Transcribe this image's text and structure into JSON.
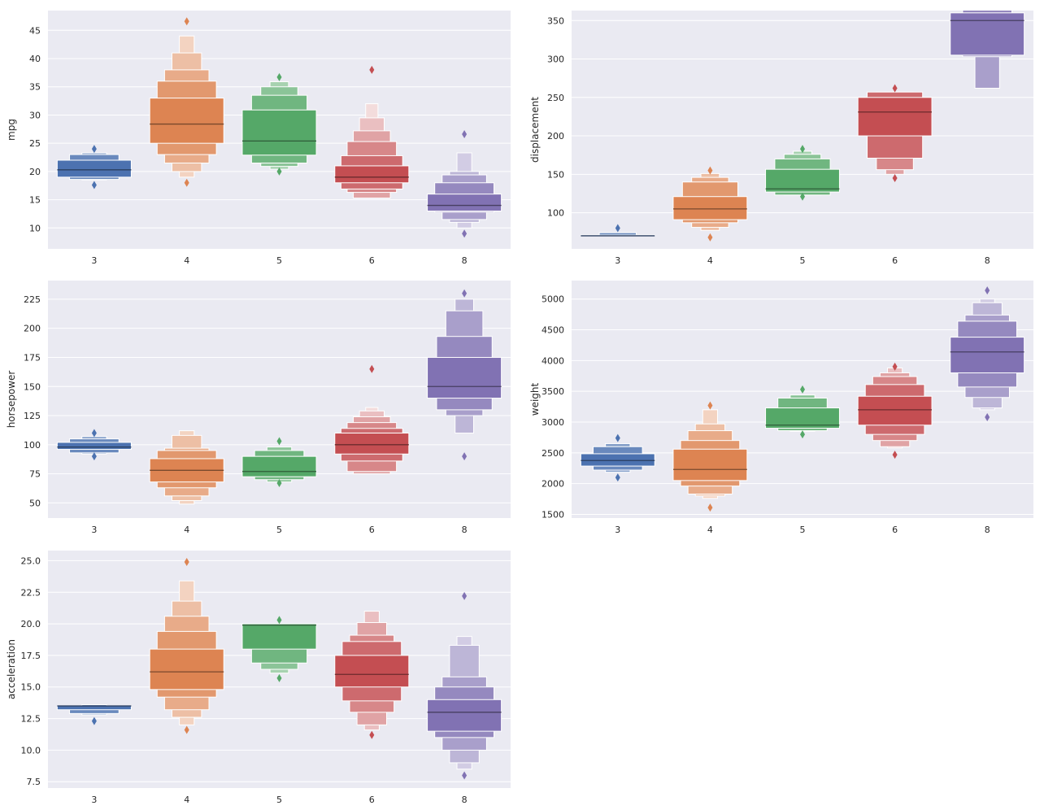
{
  "chart_data": [
    {
      "type": "boxen",
      "xlabel": "",
      "ylabel": "mpg",
      "categories": [
        "3",
        "4",
        "5",
        "6",
        "8"
      ],
      "colors": [
        "#4c72b0",
        "#dd8452",
        "#55a868",
        "#c44e52",
        "#8172b3"
      ],
      "ylim": [
        6.3,
        48.5
      ],
      "yticks": [
        "10",
        "15",
        "20",
        "25",
        "30",
        "35",
        "40",
        "45"
      ],
      "grid": true,
      "series": [
        {
          "category": "3",
          "median": 20.3,
          "boxes": [
            [
              19.0,
              22.0
            ],
            [
              18.6,
              23.0
            ],
            [
              18.5,
              23.3
            ]
          ],
          "outliers": [
            24.0,
            17.6
          ]
        },
        {
          "category": "4",
          "median": 28.4,
          "boxes": [
            [
              25.0,
              33.0
            ],
            [
              23.0,
              36.0
            ],
            [
              21.5,
              38.0
            ],
            [
              20.0,
              41.0
            ],
            [
              19.0,
              44.0
            ]
          ],
          "outliers": [
            46.6,
            18.0
          ]
        },
        {
          "category": "5",
          "median": 25.4,
          "boxes": [
            [
              22.9,
              30.9
            ],
            [
              21.5,
              33.5
            ],
            [
              20.9,
              35.0
            ],
            [
              20.4,
              35.9
            ]
          ],
          "outliers": [
            36.7,
            20.0
          ]
        },
        {
          "category": "6",
          "median": 19.0,
          "boxes": [
            [
              18.0,
              21.0
            ],
            [
              16.9,
              22.8
            ],
            [
              16.3,
              25.3
            ],
            [
              15.3,
              27.2
            ],
            [
              15.3,
              29.5
            ],
            [
              15.3,
              32.0
            ]
          ],
          "outliers": [
            38.0
          ]
        },
        {
          "category": "8",
          "median": 14.0,
          "boxes": [
            [
              13.0,
              16.0
            ],
            [
              12.8,
              18.0
            ],
            [
              11.5,
              19.4
            ],
            [
              11.0,
              20.0
            ],
            [
              10.0,
              23.3
            ]
          ],
          "outliers": [
            26.6,
            9.0
          ]
        }
      ]
    },
    {
      "type": "boxen",
      "xlabel": "",
      "ylabel": "displacement",
      "categories": [
        "3",
        "4",
        "5",
        "6",
        "8"
      ],
      "colors": [
        "#4c72b0",
        "#dd8452",
        "#55a868",
        "#c44e52",
        "#8172b3"
      ],
      "ylim": [
        53,
        363
      ],
      "yticks": [
        "100",
        "150",
        "200",
        "250",
        "300",
        "350"
      ],
      "grid": true,
      "series": [
        {
          "category": "3",
          "median": 70.0,
          "boxes": [
            [
              70.0,
              71.0
            ],
            [
              70.0,
              74.0
            ]
          ],
          "outliers": [
            80.0
          ]
        },
        {
          "category": "4",
          "median": 105.0,
          "boxes": [
            [
              91.0,
              121.0
            ],
            [
              87.0,
              140.0
            ],
            [
              81.0,
              146.0
            ],
            [
              77.0,
              151.0
            ]
          ],
          "outliers": [
            155.0,
            68.0
          ]
        },
        {
          "category": "5",
          "median": 131.0,
          "boxes": [
            [
              127.0,
              156.5
            ],
            [
              123.0,
              170.0
            ],
            [
              123.0,
              176.0
            ],
            [
              123.0,
              180.0
            ]
          ],
          "outliers": [
            183.0,
            121.0
          ]
        },
        {
          "category": "6",
          "median": 231.0,
          "boxes": [
            [
              200.0,
              250.0
            ],
            [
              171.0,
              257.0
            ],
            [
              156.0,
              257.0
            ],
            [
              150.0,
              257.0
            ]
          ],
          "outliers": [
            262.0,
            145.0
          ]
        },
        {
          "category": "8",
          "median": 350.0,
          "boxes": [
            [
              305.0,
              360.0
            ],
            [
              303.0,
              364.0
            ],
            [
              262.0,
              364.0
            ]
          ],
          "outliers": []
        }
      ]
    },
    {
      "type": "boxen",
      "xlabel": "",
      "ylabel": "horsepower",
      "categories": [
        "3",
        "4",
        "5",
        "6",
        "8"
      ],
      "colors": [
        "#4c72b0",
        "#dd8452",
        "#55a868",
        "#c44e52",
        "#8172b3"
      ],
      "ylim": [
        37,
        241
      ],
      "yticks": [
        "50",
        "75",
        "100",
        "125",
        "150",
        "175",
        "200",
        "225"
      ],
      "grid": true,
      "series": [
        {
          "category": "3",
          "median": 98.0,
          "boxes": [
            [
              96.0,
              102.0
            ],
            [
              93.0,
              105.0
            ],
            [
              92.0,
              107.0
            ]
          ],
          "outliers": [
            110.0,
            90.0
          ]
        },
        {
          "category": "4",
          "median": 78.0,
          "boxes": [
            [
              68.0,
              88.0
            ],
            [
              63.0,
              95.0
            ],
            [
              56.0,
              97.0
            ],
            [
              52.0,
              108.0
            ],
            [
              49.0,
              112.0
            ]
          ],
          "outliers": []
        },
        {
          "category": "5",
          "median": 77.0,
          "boxes": [
            [
              72.5,
              90.0
            ],
            [
              70.0,
              95.0
            ],
            [
              68.0,
              98.0
            ]
          ],
          "outliers": [
            103.0,
            67.0
          ]
        },
        {
          "category": "6",
          "median": 100.0,
          "boxes": [
            [
              92.0,
              110.0
            ],
            [
              86.0,
              114.0
            ],
            [
              77.0,
              119.0
            ],
            [
              75.0,
              124.0
            ],
            [
              75.0,
              129.0
            ],
            [
              75.0,
              132.0
            ]
          ],
          "outliers": [
            165.0
          ]
        },
        {
          "category": "8",
          "median": 150.0,
          "boxes": [
            [
              140.0,
              175.0
            ],
            [
              130.0,
              193.0
            ],
            [
              125.0,
              215.0
            ],
            [
              110.0,
              225.0
            ]
          ],
          "outliers": [
            230.0,
            90.0
          ]
        }
      ]
    },
    {
      "type": "boxen",
      "xlabel": "",
      "ylabel": "weight",
      "categories": [
        "3",
        "4",
        "5",
        "6",
        "8"
      ],
      "colors": [
        "#4c72b0",
        "#dd8452",
        "#55a868",
        "#c44e52",
        "#8172b3"
      ],
      "ylim": [
        1440,
        5300
      ],
      "yticks": [
        "1500",
        "2000",
        "2500",
        "3000",
        "3500",
        "4000",
        "4500",
        "5000"
      ],
      "grid": true,
      "series": [
        {
          "category": "3",
          "median": 2375,
          "boxes": [
            [
              2285,
              2485
            ],
            [
              2220,
              2600
            ],
            [
              2185,
              2650
            ]
          ],
          "outliers": [
            2740,
            2100
          ]
        },
        {
          "category": "4",
          "median": 2230,
          "boxes": [
            [
              2050,
              2560
            ],
            [
              1960,
              2700
            ],
            [
              1830,
              2860
            ],
            [
              1800,
              2970
            ],
            [
              1760,
              3200
            ]
          ],
          "outliers": [
            3270,
            1610
          ]
        },
        {
          "category": "5",
          "median": 2950,
          "boxes": [
            [
              2900,
              3230
            ],
            [
              2860,
              3390
            ],
            [
              2850,
              3440
            ]
          ],
          "outliers": [
            3530,
            2800
          ]
        },
        {
          "category": "6",
          "median": 3200,
          "boxes": [
            [
              2950,
              3420
            ],
            [
              2800,
              3610
            ],
            [
              2700,
              3740
            ],
            [
              2600,
              3800
            ],
            [
              2580,
              3880
            ]
          ],
          "outliers": [
            3900,
            2470
          ]
        },
        {
          "category": "8",
          "median": 4140,
          "boxes": [
            [
              3800,
              4380
            ],
            [
              3570,
              4640
            ],
            [
              3400,
              4740
            ],
            [
              3230,
              4940
            ],
            [
              3200,
              5000
            ]
          ],
          "outliers": [
            5140,
            3080
          ]
        }
      ]
    },
    {
      "type": "boxen",
      "xlabel": "",
      "ylabel": "acceleration",
      "categories": [
        "3",
        "4",
        "5",
        "6",
        "8"
      ],
      "colors": [
        "#4c72b0",
        "#dd8452",
        "#55a868",
        "#c44e52",
        "#8172b3"
      ],
      "ylim": [
        7.0,
        25.8
      ],
      "yticks": [
        "7.5",
        "10.0",
        "12.5",
        "15.0",
        "17.5",
        "20.0",
        "22.5",
        "25.0"
      ],
      "grid": true,
      "series": [
        {
          "category": "3",
          "median": 13.5,
          "boxes": [
            [
              13.2,
              13.5
            ],
            [
              12.9,
              13.5
            ],
            [
              12.8,
              13.6
            ]
          ],
          "outliers": [
            12.3
          ]
        },
        {
          "category": "4",
          "median": 16.2,
          "boxes": [
            [
              14.8,
              18.0
            ],
            [
              14.2,
              19.4
            ],
            [
              13.2,
              20.6
            ],
            [
              12.6,
              21.8
            ],
            [
              12.0,
              23.4
            ]
          ],
          "outliers": [
            24.9,
            11.6
          ]
        },
        {
          "category": "5",
          "median": 19.9,
          "boxes": [
            [
              18.0,
              20.0
            ],
            [
              16.9,
              20.0
            ],
            [
              16.4,
              20.0
            ],
            [
              16.1,
              20.0
            ]
          ],
          "outliers": [
            20.3,
            15.7
          ]
        },
        {
          "category": "6",
          "median": 16.0,
          "boxes": [
            [
              15.0,
              17.5
            ],
            [
              13.9,
              18.6
            ],
            [
              13.0,
              19.1
            ],
            [
              12.0,
              20.1
            ],
            [
              11.6,
              21.0
            ]
          ],
          "outliers": [
            11.2
          ]
        },
        {
          "category": "8",
          "median": 13.0,
          "boxes": [
            [
              11.5,
              14.0
            ],
            [
              11.0,
              15.0
            ],
            [
              10.0,
              15.8
            ],
            [
              9.0,
              18.3
            ],
            [
              8.5,
              19.0
            ]
          ],
          "outliers": [
            22.2,
            8.0
          ]
        }
      ]
    }
  ]
}
